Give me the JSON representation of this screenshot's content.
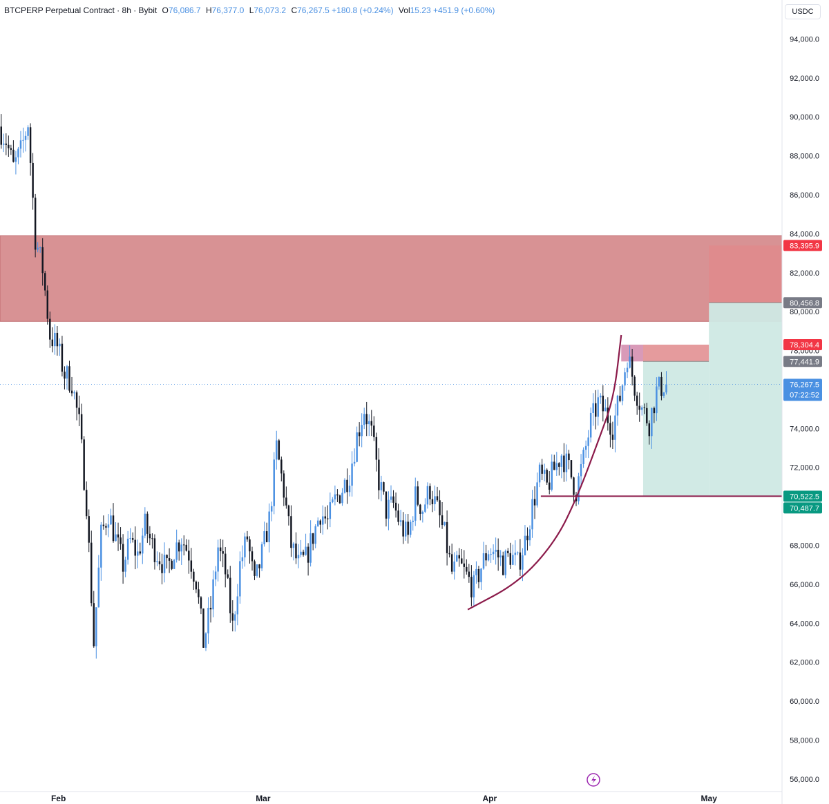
{
  "header": {
    "symbol": "BTCPERP Perpetual Contract · 8h · Bybit",
    "o_label": "O",
    "o_value": "76,086.7",
    "h_label": "H",
    "h_value": "76,377.0",
    "l_label": "L",
    "l_value": "76,073.2",
    "c_label": "C",
    "c_value": "76,267.5",
    "change": "+180.8 (+0.24%)",
    "vol_label": "Vol",
    "vol_value": "15.23",
    "vol_change": "+451.9 (+0.60%)"
  },
  "currency": "USDC",
  "colors": {
    "bull": "#4a90e2",
    "bear": "#131722",
    "resistance_zone": "#d89294",
    "stop_zone": "#e08a8c",
    "target_zone": "#cfe9e4",
    "curve": "#8b1a4a",
    "tag_red": "#f23645",
    "tag_gray": "#787b86",
    "tag_blue": "#4a90e2",
    "tag_green": "#089981"
  },
  "chart_data": {
    "type": "candlestick",
    "ylim": [
      55500,
      96000
    ],
    "y_ticks": [
      56000,
      58000,
      60000,
      62000,
      64000,
      66000,
      68000,
      70000,
      72000,
      74000,
      76000,
      78000,
      80000,
      82000,
      84000,
      86000,
      88000,
      90000,
      92000,
      94000
    ],
    "y_tick_labels": [
      "56,000.0",
      "58,000.0",
      "60,000.0",
      "62,000.0",
      "64,000.0",
      "66,000.0",
      "68,000.0",
      "70,000.0",
      "72,000.0",
      "74,000.0",
      "76,000.0",
      "78,000.0",
      "80,000.0",
      "82,000.0",
      "84,000.0",
      "86,000.0",
      "88,000.0",
      "90,000.0",
      "92,000.0",
      "94,000.0"
    ],
    "x_range": [
      "2025-01-24",
      "2025-05-11"
    ],
    "x_ticks": [
      {
        "date": "2025-02-01",
        "label": "Feb"
      },
      {
        "date": "2025-03-01",
        "label": "Mar"
      },
      {
        "date": "2025-04-01",
        "label": "Apr"
      },
      {
        "date": "2025-05-01",
        "label": "May"
      }
    ],
    "price_path": [
      [
        "2025-01-24",
        89500
      ],
      [
        "2025-01-25",
        88800
      ],
      [
        "2025-01-26",
        87400
      ],
      [
        "2025-01-27",
        88200
      ],
      [
        "2025-01-28",
        89700
      ],
      [
        "2025-01-29",
        83800
      ],
      [
        "2025-01-30",
        82200
      ],
      [
        "2025-01-31",
        78800
      ],
      [
        "2025-02-01",
        78200
      ],
      [
        "2025-02-02",
        76800
      ],
      [
        "2025-02-03",
        76400
      ],
      [
        "2025-02-04",
        74200
      ],
      [
        "2025-02-05",
        70200
      ],
      [
        "2025-02-06",
        63000
      ],
      [
        "2025-02-07",
        68500
      ],
      [
        "2025-02-08",
        69700
      ],
      [
        "2025-02-09",
        68300
      ],
      [
        "2025-02-10",
        67000
      ],
      [
        "2025-02-11",
        68200
      ],
      [
        "2025-02-12",
        67500
      ],
      [
        "2025-02-13",
        69000
      ],
      [
        "2025-02-14",
        68000
      ],
      [
        "2025-02-15",
        67400
      ],
      [
        "2025-02-16",
        66700
      ],
      [
        "2025-02-17",
        67800
      ],
      [
        "2025-02-18",
        68400
      ],
      [
        "2025-02-19",
        67600
      ],
      [
        "2025-02-20",
        66200
      ],
      [
        "2025-02-21",
        63000
      ],
      [
        "2025-02-22",
        64800
      ],
      [
        "2025-02-23",
        67900
      ],
      [
        "2025-02-24",
        66600
      ],
      [
        "2025-02-25",
        63800
      ],
      [
        "2025-02-26",
        67000
      ],
      [
        "2025-02-27",
        68400
      ],
      [
        "2025-02-28",
        65900
      ],
      [
        "2025-03-01",
        67500
      ],
      [
        "2025-03-02",
        69300
      ],
      [
        "2025-03-03",
        73000
      ],
      [
        "2025-03-04",
        70800
      ],
      [
        "2025-03-05",
        68000
      ],
      [
        "2025-03-06",
        67000
      ],
      [
        "2025-03-07",
        67300
      ],
      [
        "2025-03-08",
        68500
      ],
      [
        "2025-03-09",
        69700
      ],
      [
        "2025-03-10",
        69200
      ],
      [
        "2025-03-11",
        70300
      ],
      [
        "2025-03-12",
        70900
      ],
      [
        "2025-03-13",
        71700
      ],
      [
        "2025-03-14",
        73600
      ],
      [
        "2025-03-15",
        75000
      ],
      [
        "2025-03-16",
        73700
      ],
      [
        "2025-03-17",
        71300
      ],
      [
        "2025-03-18",
        69800
      ],
      [
        "2025-03-19",
        70100
      ],
      [
        "2025-03-20",
        69000
      ],
      [
        "2025-03-21",
        68400
      ],
      [
        "2025-03-22",
        70500
      ],
      [
        "2025-03-23",
        69900
      ],
      [
        "2025-03-24",
        70900
      ],
      [
        "2025-03-25",
        69800
      ],
      [
        "2025-03-26",
        68500
      ],
      [
        "2025-03-27",
        66600
      ],
      [
        "2025-03-28",
        67000
      ],
      [
        "2025-03-29",
        66400
      ],
      [
        "2025-03-30",
        65800
      ],
      [
        "2025-03-31",
        66900
      ],
      [
        "2025-04-01",
        67800
      ],
      [
        "2025-04-02",
        67600
      ],
      [
        "2025-04-03",
        67100
      ],
      [
        "2025-04-04",
        67500
      ],
      [
        "2025-04-05",
        67000
      ],
      [
        "2025-04-06",
        68200
      ],
      [
        "2025-04-07",
        70000
      ],
      [
        "2025-04-08",
        71600
      ],
      [
        "2025-04-09",
        71000
      ],
      [
        "2025-04-10",
        71900
      ],
      [
        "2025-04-11",
        72700
      ],
      [
        "2025-04-12",
        71900
      ],
      [
        "2025-04-13",
        70800
      ],
      [
        "2025-04-14",
        72400
      ],
      [
        "2025-04-15",
        74300
      ],
      [
        "2025-04-16",
        75300
      ],
      [
        "2025-04-17",
        74800
      ],
      [
        "2025-04-18",
        74100
      ],
      [
        "2025-04-19",
        75600
      ],
      [
        "2025-04-20",
        77800
      ],
      [
        "2025-04-21",
        76200
      ],
      [
        "2025-04-22",
        75000
      ],
      [
        "2025-04-23",
        74300
      ],
      [
        "2025-04-24",
        75900
      ],
      [
        "2025-04-25",
        76267.5
      ]
    ],
    "current_price": 76267.5,
    "countdown": "07:22:52",
    "price_tags": [
      {
        "label": "83,395.9",
        "price": 83395.9,
        "style": "red"
      },
      {
        "label": "80,456.8",
        "price": 80456.8,
        "style": "gray"
      },
      {
        "label": "78,304.4",
        "price": 78304.4,
        "style": "red"
      },
      {
        "label": "77,441.9",
        "price": 77441.9,
        "style": "gray"
      },
      {
        "label": "76,267.5",
        "price": 76267.5,
        "style": "blue"
      },
      {
        "label": "70,522.5",
        "price": 70522.5,
        "style": "green"
      },
      {
        "label": "70,487.7",
        "price": 70487.7,
        "style": "green"
      }
    ],
    "zones": [
      {
        "name": "resistance-zone",
        "top": 83900,
        "bottom": 79500,
        "x_from": "2025-01-24",
        "x_to": "2025-05-11"
      }
    ],
    "positions": [
      {
        "name": "short-position-1",
        "x_from": "2025-04-22",
        "x_to": "2025-05-01",
        "stop": 78304.4,
        "entry": 77441.9,
        "target": 70522.5
      },
      {
        "name": "short-position-2",
        "x_from": "2025-05-01",
        "x_to": "2025-05-11",
        "stop": 83395.9,
        "entry": 80456.8,
        "target": 70487.7
      }
    ],
    "support_line": {
      "price": 70522.5,
      "x_from": "2025-04-08",
      "x_to": "2025-05-11"
    },
    "curve": [
      [
        "2025-03-29",
        64700
      ],
      [
        "2025-04-05",
        66100
      ],
      [
        "2025-04-10",
        68200
      ],
      [
        "2025-04-13",
        70500
      ],
      [
        "2025-04-16",
        73500
      ],
      [
        "2025-04-18",
        75600
      ],
      [
        "2025-04-19",
        78800
      ]
    ]
  }
}
